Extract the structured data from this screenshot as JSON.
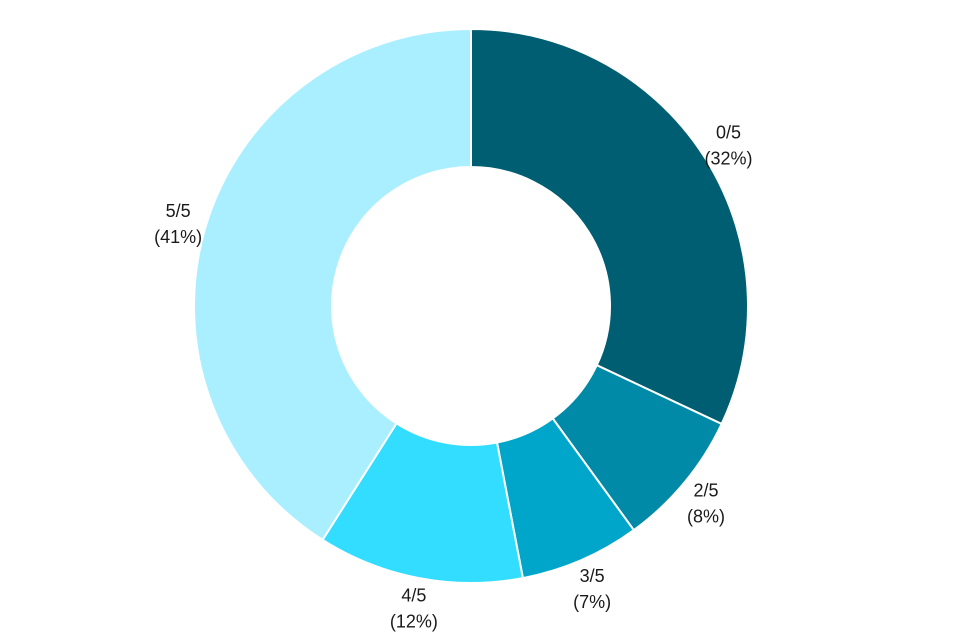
{
  "chart_data": {
    "type": "pie",
    "style": "donut",
    "title": "",
    "slices": [
      {
        "label": "0/5",
        "pct_label": "(32%)",
        "value": 32,
        "color": "#005e73"
      },
      {
        "label": "2/5",
        "pct_label": "(8%)",
        "value": 8,
        "color": "#008aa8"
      },
      {
        "label": "3/5",
        "pct_label": "(7%)",
        "value": 7,
        "color": "#00a6c9"
      },
      {
        "label": "4/5",
        "pct_label": "(12%)",
        "value": 12,
        "color": "#33ddff"
      },
      {
        "label": "5/5",
        "pct_label": "(41%)",
        "value": 41,
        "color": "#a9efff"
      }
    ]
  }
}
